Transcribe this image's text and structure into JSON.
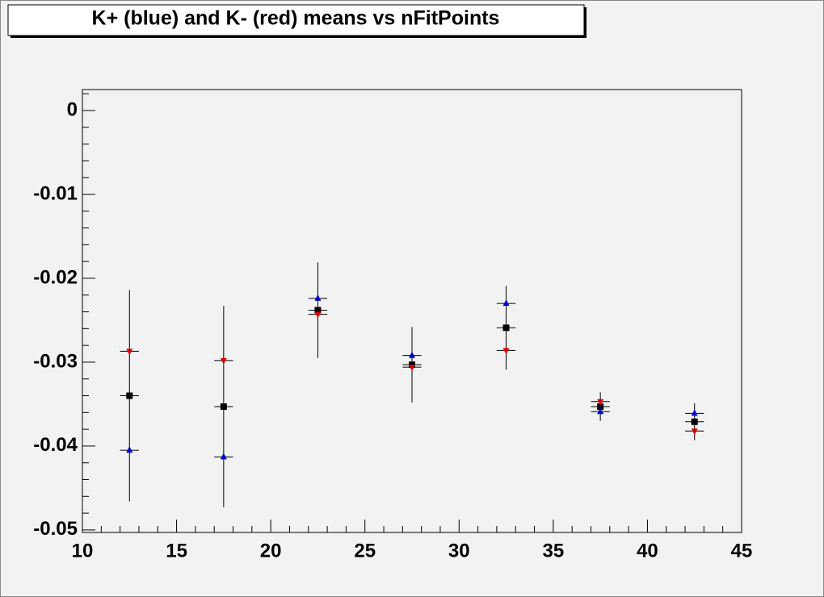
{
  "chart_data": {
    "type": "scatter",
    "title": "K+ (blue) and K- (red) means vs nFitPoints",
    "x": [
      12.5,
      17.5,
      22.5,
      27.5,
      32.5,
      37.5,
      42.5
    ],
    "series": [
      {
        "color": "#000000",
        "marker": "square",
        "xerr": 0.5,
        "values": [
          -0.034,
          -0.0353,
          -0.0238,
          -0.0303,
          -0.0259,
          -0.0353,
          -0.0371
        ],
        "errors": [
          0.0126,
          0.012,
          0.0057,
          0.0045,
          0.005,
          0.0017,
          0.0022
        ]
      },
      {
        "color": "#0000cc",
        "marker": "triangle-up",
        "xerr": 0.5,
        "values": [
          -0.0405,
          -0.0413,
          -0.0224,
          -0.0292,
          -0.023,
          -0.0359,
          -0.0361
        ]
      },
      {
        "color": "#dd0000",
        "marker": "triangle-down",
        "xerr": 0.5,
        "values": [
          -0.0287,
          -0.0298,
          -0.0243,
          -0.0306,
          -0.0286,
          -0.0347,
          -0.0382
        ]
      }
    ],
    "xlim": [
      10,
      45
    ],
    "xticks": [
      10,
      15,
      20,
      25,
      30,
      35,
      40,
      45
    ],
    "ylim": [
      -0.0503,
      0.0025
    ],
    "yticks": [
      0,
      -0.01,
      -0.02,
      -0.03,
      -0.04,
      -0.05
    ],
    "minor_divisions": 5
  }
}
